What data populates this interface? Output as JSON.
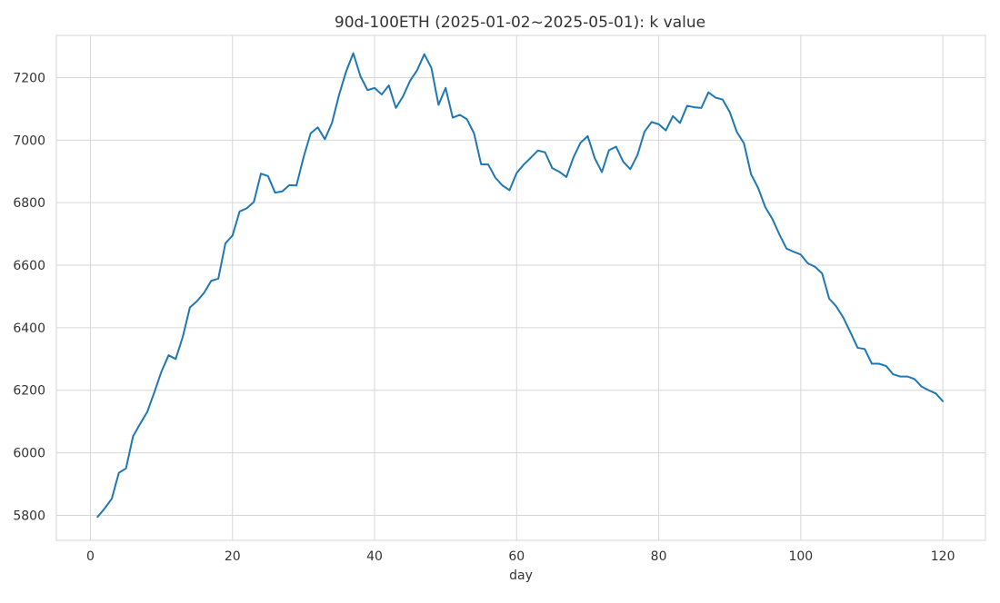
{
  "chart_data": {
    "type": "line",
    "title": "90d-100ETH (2025-01-02~2025-05-01): k value",
    "xlabel": "day",
    "ylabel": "",
    "xlim": [
      -4.8,
      126
    ],
    "ylim": [
      5720,
      7335
    ],
    "xticks": [
      0,
      20,
      40,
      60,
      80,
      100,
      120
    ],
    "yticks": [
      5800,
      6000,
      6200,
      6400,
      6600,
      6800,
      7000,
      7200
    ],
    "grid": true,
    "legend": "none",
    "series_color": "#1f77b4",
    "series": [
      {
        "x": [
          1,
          2,
          3,
          4,
          5,
          6,
          7,
          8,
          9,
          10,
          11,
          12,
          13,
          14,
          15,
          16,
          17,
          18,
          19,
          20,
          21,
          22,
          23,
          24,
          25,
          26,
          27,
          28,
          29,
          30,
          31,
          32,
          33,
          34,
          35,
          36,
          37,
          38,
          39,
          40,
          41,
          42,
          43,
          44,
          45,
          46,
          47,
          48,
          49,
          50,
          51,
          52,
          53,
          54,
          55,
          56,
          57,
          58,
          59,
          60,
          61,
          62,
          63,
          64,
          65,
          66,
          67,
          68,
          69,
          70,
          71,
          72,
          73,
          74,
          75,
          76,
          77,
          78,
          79,
          80,
          81,
          82,
          83,
          84,
          85,
          86,
          87,
          88,
          89,
          90,
          91,
          92,
          93,
          94,
          95,
          96,
          97,
          98,
          99,
          100,
          101,
          102,
          103,
          104,
          105,
          106,
          107,
          108,
          109,
          110,
          111,
          112,
          113,
          114,
          115,
          116,
          117,
          118,
          119,
          120
        ],
        "y": [
          5795,
          5822,
          5853,
          5936,
          5950,
          6053,
          6093,
          6131,
          6194,
          6260,
          6312,
          6300,
          6371,
          6465,
          6485,
          6512,
          6550,
          6557,
          6670,
          6695,
          6772,
          6782,
          6802,
          6893,
          6885,
          6832,
          6836,
          6856,
          6855,
          6945,
          7022,
          7041,
          7003,
          7055,
          7145,
          7220,
          7278,
          7205,
          7160,
          7167,
          7146,
          7175,
          7103,
          7140,
          7190,
          7224,
          7275,
          7231,
          7113,
          7167,
          7072,
          7081,
          7067,
          7022,
          6923,
          6922,
          6880,
          6855,
          6840,
          6895,
          6922,
          6944,
          6967,
          6961,
          6911,
          6899,
          6882,
          6945,
          6992,
          7013,
          6942,
          6898,
          6968,
          6979,
          6931,
          6907,
          6952,
          7027,
          7058,
          7051,
          7031,
          7077,
          7055,
          7110,
          7105,
          7103,
          7153,
          7136,
          7130,
          7090,
          7026,
          6990,
          6891,
          6847,
          6786,
          6748,
          6698,
          6653,
          6643,
          6634,
          6606,
          6595,
          6574,
          6493,
          6468,
          6432,
          6385,
          6336,
          6332,
          6285,
          6285,
          6278,
          6251,
          6244,
          6244,
          6236,
          6212,
          6200,
          6190,
          6165
        ]
      }
    ]
  }
}
